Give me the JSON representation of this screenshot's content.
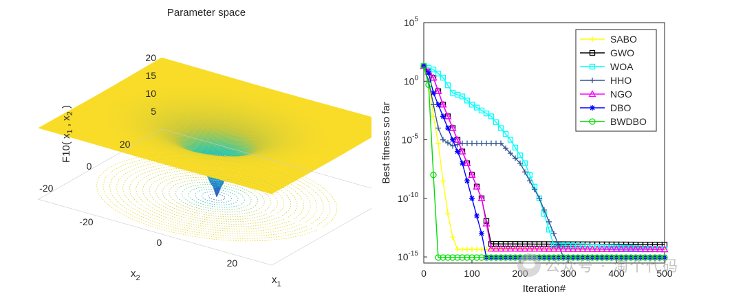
{
  "chart_data": [
    {
      "type": "surface3d",
      "title": "Parameter space",
      "zlabel_parts": [
        "F10( x",
        "1",
        " , x",
        "2",
        " )"
      ],
      "xlabel_main": "x",
      "xlabel_sub": "1",
      "ylabel_main": "x",
      "ylabel_sub": "2",
      "z_ticks": [
        "5",
        "10",
        "15",
        "20"
      ],
      "x_ticks": [
        "-20",
        "0",
        "20"
      ],
      "y_ticks": [
        "-20",
        "0",
        "20"
      ],
      "xlim": [
        -32,
        32
      ],
      "ylim": [
        -32,
        32
      ],
      "zlim": [
        0,
        22
      ]
    },
    {
      "type": "line",
      "yscale": "log",
      "xlabel": "Iteration#",
      "ylabel": "Best fitness so far",
      "xlim": [
        0,
        500
      ],
      "x_ticks": [
        "0",
        "100",
        "200",
        "300",
        "400",
        "500"
      ],
      "y_ticks": [
        {
          "base": "10",
          "exp": "-15",
          "value": 1e-15
        },
        {
          "base": "10",
          "exp": "-10",
          "value": 1e-10
        },
        {
          "base": "10",
          "exp": "-5",
          "value": 1e-05
        },
        {
          "base": "10",
          "exp": "0",
          "value": 1
        },
        {
          "base": "10",
          "exp": "5",
          "value": 100000.0
        }
      ],
      "ylim": [
        3e-16,
        100000.0
      ],
      "series": [
        {
          "name": "SABO",
          "color": "#ffff00",
          "marker": "plus",
          "x": [
            0,
            10,
            20,
            30,
            40,
            50,
            60,
            70,
            500
          ],
          "y": [
            20,
            1,
            0.001,
            5e-06,
            3e-09,
            5e-12,
            5e-14,
            4.44e-15,
            4.44e-15
          ]
        },
        {
          "name": "GWO",
          "color": "#000000",
          "marker": "square",
          "x": [
            0,
            20,
            40,
            60,
            80,
            100,
            120,
            140,
            500
          ],
          "y": [
            20,
            2,
            0.01,
            0.0001,
            1e-06,
            1e-08,
            1e-10,
            1.3e-14,
            1.1e-14
          ]
        },
        {
          "name": "WOA",
          "color": "#00ffff",
          "marker": "square",
          "x": [
            0,
            20,
            40,
            60,
            80,
            100,
            140,
            180,
            210,
            240,
            270,
            500
          ],
          "y": [
            20,
            10,
            2,
            0.1,
            0.05,
            0.01,
            0.001,
            1e-05,
            1e-07,
            1e-10,
            1e-14,
            4.44e-15
          ]
        },
        {
          "name": "HHO",
          "color": "#325694",
          "marker": "plus",
          "x": [
            0,
            10,
            20,
            30,
            40,
            60,
            80,
            120,
            160,
            200,
            240,
            280,
            290,
            500
          ],
          "y": [
            20,
            1,
            0.01,
            0.0001,
            1e-05,
            3e-06,
            5e-06,
            5e-06,
            5e-06,
            1e-07,
            1e-10,
            1e-14,
            8.88e-16,
            8.88e-16
          ]
        },
        {
          "name": "NGO",
          "color": "#ff00ff",
          "marker": "triangle",
          "x": [
            0,
            20,
            40,
            60,
            80,
            100,
            120,
            140,
            500
          ],
          "y": [
            20,
            2,
            0.01,
            0.0001,
            1e-06,
            1e-08,
            1e-10,
            5e-15,
            4.44e-15
          ]
        },
        {
          "name": "DBO",
          "color": "#0000ff",
          "marker": "asterisk",
          "x": [
            0,
            10,
            20,
            40,
            60,
            80,
            100,
            120,
            130,
            500
          ],
          "y": [
            20,
            5,
            0.1,
            0.001,
            1e-05,
            1e-07,
            1e-10,
            1e-13,
            8.88e-16,
            8.88e-16
          ]
        },
        {
          "name": "BWDBO",
          "color": "#00dd00",
          "marker": "circle",
          "x": [
            0,
            10,
            20,
            30,
            500
          ],
          "y": [
            20,
            0.5,
            1e-08,
            8.88e-16,
            8.88e-16
          ]
        }
      ]
    }
  ],
  "watermark": "公众号 · 淘个代码"
}
